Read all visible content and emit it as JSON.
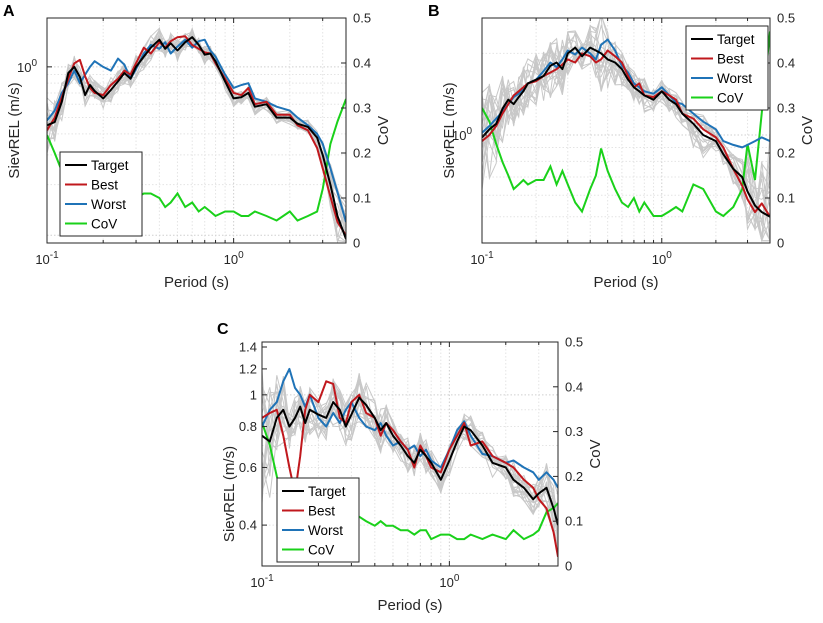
{
  "figure": {
    "series_colors": {
      "Target": "#000000",
      "Best": "#c0181d",
      "Worst": "#1f73b7",
      "CoV": "#1ad11a",
      "ensemble": "#c8c8c8"
    }
  },
  "chart_data": [
    {
      "panel": "A",
      "type": "line",
      "xlabel": "Period (s)",
      "ylabel": "SievREL (m/s)",
      "y2label": "CoV",
      "xscale": "log",
      "yscale": "log",
      "xlim": [
        0.1,
        4.0
      ],
      "ylim": [
        0.09,
        1.95
      ],
      "y2lim": [
        0,
        0.5
      ],
      "x_ticks": [
        {
          "v": 0.1,
          "base": "10",
          "exp": "-1"
        },
        {
          "v": 1,
          "base": "10",
          "exp": "0"
        }
      ],
      "y_ticks": [
        {
          "v": 1,
          "base": "10",
          "exp": "0"
        }
      ],
      "y2_ticks": [
        "0",
        "0.1",
        "0.2",
        "0.3",
        "0.4",
        "0.5"
      ],
      "legend_location": "bottom-left",
      "periods": [
        0.1,
        0.11,
        0.12,
        0.13,
        0.14,
        0.15,
        0.16,
        0.17,
        0.18,
        0.2,
        0.22,
        0.24,
        0.26,
        0.28,
        0.3,
        0.33,
        0.36,
        0.4,
        0.43,
        0.46,
        0.5,
        0.55,
        0.6,
        0.65,
        0.7,
        0.75,
        0.8,
        0.9,
        1.0,
        1.1,
        1.2,
        1.3,
        1.5,
        1.7,
        2.0,
        2.2,
        2.5,
        2.8,
        3.0,
        3.3,
        3.6,
        4.0
      ],
      "series": [
        {
          "name": "Target",
          "values": [
            0.45,
            0.47,
            0.62,
            0.92,
            1.0,
            0.87,
            0.68,
            0.78,
            0.72,
            0.65,
            0.73,
            0.82,
            0.92,
            0.85,
            1.0,
            1.15,
            1.3,
            1.45,
            1.28,
            1.38,
            1.25,
            1.4,
            1.5,
            1.35,
            1.18,
            1.2,
            1.08,
            0.82,
            0.65,
            0.66,
            0.7,
            0.58,
            0.6,
            0.5,
            0.5,
            0.46,
            0.44,
            0.38,
            0.3,
            0.2,
            0.13,
            0.095
          ]
        },
        {
          "name": "Best",
          "values": [
            0.42,
            0.5,
            0.66,
            0.85,
            1.05,
            1.1,
            0.88,
            0.75,
            0.7,
            0.68,
            0.78,
            0.85,
            0.95,
            0.9,
            1.05,
            1.3,
            1.2,
            1.4,
            1.3,
            1.42,
            1.5,
            1.52,
            1.35,
            1.28,
            1.22,
            1.2,
            1.05,
            0.85,
            0.7,
            0.68,
            0.75,
            0.6,
            0.62,
            0.52,
            0.52,
            0.45,
            0.42,
            0.33,
            0.25,
            0.17,
            0.12,
            0.1
          ]
        },
        {
          "name": "Worst",
          "values": [
            0.48,
            0.55,
            0.7,
            0.8,
            0.95,
            0.8,
            0.9,
            1.0,
            1.08,
            1.0,
            0.95,
            1.12,
            1.03,
            0.85,
            0.97,
            1.2,
            1.35,
            1.28,
            1.4,
            1.2,
            1.32,
            1.45,
            1.3,
            1.42,
            1.45,
            1.25,
            1.15,
            0.9,
            0.75,
            0.78,
            0.8,
            0.65,
            0.62,
            0.58,
            0.55,
            0.5,
            0.45,
            0.4,
            0.35,
            0.25,
            0.18,
            0.12
          ]
        }
      ],
      "cov": [
        0.24,
        0.2,
        0.16,
        0.12,
        0.1,
        0.09,
        0.11,
        0.1,
        0.09,
        0.1,
        0.11,
        0.09,
        0.1,
        0.08,
        0.1,
        0.11,
        0.11,
        0.1,
        0.08,
        0.09,
        0.11,
        0.08,
        0.09,
        0.07,
        0.08,
        0.07,
        0.06,
        0.07,
        0.07,
        0.06,
        0.06,
        0.07,
        0.06,
        0.05,
        0.07,
        0.05,
        0.06,
        0.07,
        0.12,
        0.22,
        0.27,
        0.32
      ],
      "legend": [
        "Target",
        "Best",
        "Worst",
        "CoV"
      ]
    },
    {
      "panel": "B",
      "type": "line",
      "xlabel": "Period (s)",
      "ylabel": "SievREL (m/s)",
      "y2label": "CoV",
      "xscale": "log",
      "yscale": "log",
      "xlim": [
        0.1,
        4.0
      ],
      "ylim": [
        0.4,
        2.7
      ],
      "y2lim": [
        0,
        0.5
      ],
      "x_ticks": [
        {
          "v": 0.1,
          "base": "10",
          "exp": "-1"
        },
        {
          "v": 1,
          "base": "10",
          "exp": "0"
        }
      ],
      "y_ticks": [
        {
          "v": 1,
          "base": "10",
          "exp": "0"
        }
      ],
      "y2_ticks": [
        "0",
        "0.1",
        "0.2",
        "0.3",
        "0.4",
        "0.5"
      ],
      "legend_location": "top-right",
      "periods": [
        0.1,
        0.11,
        0.12,
        0.13,
        0.14,
        0.15,
        0.16,
        0.17,
        0.18,
        0.2,
        0.22,
        0.24,
        0.26,
        0.28,
        0.3,
        0.33,
        0.36,
        0.4,
        0.43,
        0.46,
        0.5,
        0.55,
        0.6,
        0.65,
        0.7,
        0.75,
        0.8,
        0.9,
        1.0,
        1.1,
        1.2,
        1.3,
        1.5,
        1.7,
        2.0,
        2.2,
        2.5,
        2.8,
        3.0,
        3.3,
        3.6,
        4.0
      ],
      "series": [
        {
          "name": "Target",
          "values": [
            0.98,
            1.05,
            1.1,
            1.25,
            1.35,
            1.3,
            1.38,
            1.45,
            1.55,
            1.6,
            1.65,
            1.8,
            1.85,
            1.75,
            2.0,
            2.1,
            1.95,
            2.1,
            2.05,
            2.0,
            1.9,
            1.85,
            1.75,
            1.6,
            1.5,
            1.45,
            1.4,
            1.35,
            1.45,
            1.35,
            1.3,
            1.2,
            1.1,
            1.0,
            0.95,
            0.85,
            0.75,
            0.7,
            0.62,
            0.55,
            0.52,
            0.5
          ]
        },
        {
          "name": "Best",
          "values": [
            0.95,
            1.0,
            1.08,
            1.2,
            1.3,
            1.4,
            1.45,
            1.5,
            1.55,
            1.58,
            1.65,
            1.7,
            1.75,
            1.82,
            1.9,
            1.85,
            2.0,
            1.95,
            1.85,
            1.9,
            2.05,
            1.95,
            1.85,
            1.65,
            1.5,
            1.55,
            1.4,
            1.38,
            1.45,
            1.4,
            1.35,
            1.2,
            1.15,
            1.05,
            0.98,
            0.9,
            0.75,
            0.65,
            0.58,
            0.52,
            0.56,
            0.5
          ]
        },
        {
          "name": "Worst",
          "values": [
            1.02,
            1.08,
            1.15,
            1.22,
            1.3,
            1.38,
            1.42,
            1.48,
            1.55,
            1.6,
            1.72,
            1.85,
            1.78,
            1.9,
            2.05,
            1.98,
            2.1,
            2.0,
            1.9,
            2.15,
            2.25,
            2.05,
            1.8,
            1.7,
            1.55,
            1.5,
            1.45,
            1.42,
            1.5,
            1.4,
            1.32,
            1.3,
            1.2,
            1.12,
            1.05,
            0.95,
            0.92,
            0.9,
            0.92,
            0.95,
            0.98,
            0.95
          ]
        }
      ],
      "cov": [
        0.3,
        0.27,
        0.22,
        0.18,
        0.15,
        0.12,
        0.13,
        0.14,
        0.13,
        0.14,
        0.14,
        0.17,
        0.13,
        0.16,
        0.13,
        0.09,
        0.07,
        0.12,
        0.15,
        0.21,
        0.16,
        0.12,
        0.09,
        0.08,
        0.1,
        0.07,
        0.09,
        0.06,
        0.06,
        0.07,
        0.08,
        0.07,
        0.13,
        0.12,
        0.07,
        0.06,
        0.08,
        0.12,
        0.22,
        0.14,
        0.29,
        0.47
      ],
      "legend": [
        "Target",
        "Best",
        "Worst",
        "CoV"
      ]
    },
    {
      "panel": "C",
      "type": "line",
      "xlabel": "Period (s)",
      "ylabel": "SievREL (m/s)",
      "y2label": "CoV",
      "xscale": "log",
      "yscale": "log",
      "xlim": [
        0.1,
        3.8
      ],
      "ylim": [
        0.3,
        1.45
      ],
      "y2lim": [
        0,
        0.5
      ],
      "x_ticks": [
        {
          "v": 0.1,
          "base": "10",
          "exp": "-1"
        },
        {
          "v": 1,
          "base": "10",
          "exp": "0"
        }
      ],
      "y_ticks": [
        {
          "v": 0.4,
          "text": "0.4"
        },
        {
          "v": 0.6,
          "text": "0.6"
        },
        {
          "v": 0.8,
          "text": "0.8"
        },
        {
          "v": 1.0,
          "text": "1"
        },
        {
          "v": 1.2,
          "text": "1.2"
        },
        {
          "v": 1.4,
          "text": "1.4"
        }
      ],
      "y2_ticks": [
        "0",
        "0.1",
        "0.2",
        "0.3",
        "0.4",
        "0.5"
      ],
      "legend_location": "bottom-left",
      "periods": [
        0.1,
        0.11,
        0.12,
        0.13,
        0.14,
        0.15,
        0.16,
        0.17,
        0.18,
        0.2,
        0.22,
        0.24,
        0.26,
        0.28,
        0.3,
        0.33,
        0.36,
        0.4,
        0.43,
        0.46,
        0.5,
        0.55,
        0.6,
        0.65,
        0.7,
        0.75,
        0.8,
        0.9,
        1.0,
        1.1,
        1.2,
        1.3,
        1.5,
        1.7,
        2.0,
        2.2,
        2.5,
        2.8,
        3.0,
        3.3,
        3.6,
        3.8
      ],
      "series": [
        {
          "name": "Target",
          "values": [
            0.75,
            0.72,
            0.85,
            0.9,
            0.8,
            0.85,
            0.92,
            0.82,
            0.9,
            0.87,
            0.85,
            0.95,
            0.9,
            0.8,
            0.87,
            0.98,
            0.93,
            0.85,
            0.78,
            0.82,
            0.75,
            0.7,
            0.65,
            0.62,
            0.68,
            0.65,
            0.62,
            0.55,
            0.63,
            0.72,
            0.8,
            0.78,
            0.7,
            0.62,
            0.6,
            0.55,
            0.52,
            0.48,
            0.5,
            0.52,
            0.45,
            0.4
          ]
        },
        {
          "name": "Best",
          "values": [
            0.85,
            0.88,
            0.9,
            0.75,
            0.6,
            0.5,
            0.65,
            0.9,
            1.0,
            0.95,
            1.1,
            1.08,
            0.85,
            0.82,
            0.95,
            1.0,
            0.88,
            0.85,
            0.75,
            0.82,
            0.78,
            0.72,
            0.68,
            0.6,
            0.7,
            0.65,
            0.6,
            0.58,
            0.68,
            0.75,
            0.82,
            0.7,
            0.72,
            0.65,
            0.62,
            0.6,
            0.55,
            0.52,
            0.48,
            0.45,
            0.38,
            0.32
          ]
        },
        {
          "name": "Worst",
          "values": [
            0.8,
            0.9,
            0.95,
            1.1,
            1.2,
            1.05,
            1.0,
            0.92,
            1.0,
            0.85,
            0.8,
            0.88,
            0.82,
            0.9,
            0.95,
            0.85,
            0.8,
            0.78,
            0.82,
            0.75,
            0.7,
            0.72,
            0.68,
            0.7,
            0.65,
            0.68,
            0.63,
            0.6,
            0.68,
            0.78,
            0.83,
            0.75,
            0.66,
            0.65,
            0.62,
            0.63,
            0.6,
            0.58,
            0.55,
            0.58,
            0.55,
            0.52
          ]
        }
      ],
      "cov": [
        0.32,
        0.27,
        0.2,
        0.15,
        0.1,
        0.09,
        0.1,
        0.1,
        0.11,
        0.12,
        0.1,
        0.11,
        0.09,
        0.1,
        0.12,
        0.11,
        0.1,
        0.09,
        0.1,
        0.09,
        0.09,
        0.08,
        0.08,
        0.07,
        0.08,
        0.08,
        0.06,
        0.07,
        0.07,
        0.06,
        0.06,
        0.07,
        0.06,
        0.07,
        0.06,
        0.08,
        0.06,
        0.07,
        0.08,
        0.12,
        0.13,
        0.14
      ],
      "legend": [
        "Target",
        "Best",
        "Worst",
        "CoV"
      ]
    }
  ]
}
